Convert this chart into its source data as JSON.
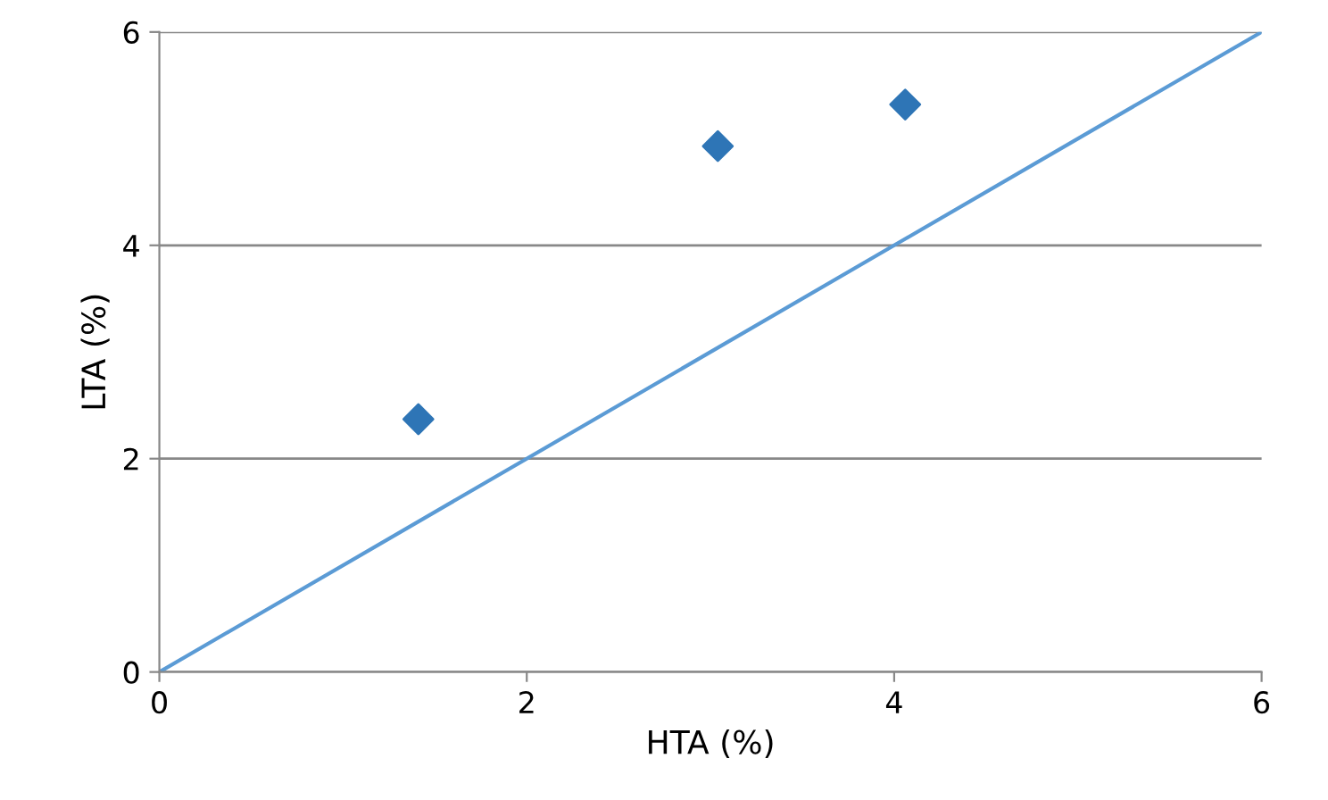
{
  "chart_data": {
    "type": "scatter",
    "xlabel": "HTA (%)",
    "ylabel": "LTA (%)",
    "xlim": [
      0,
      6
    ],
    "ylim": [
      0,
      6
    ],
    "xticks": [
      0,
      2,
      4,
      6
    ],
    "yticks": [
      0,
      2,
      4,
      6
    ],
    "grid": "y",
    "legend": false,
    "series": [
      {
        "marker": "diamond",
        "color": "#2e75b6",
        "x": [
          1.41,
          3.04,
          4.06
        ],
        "values": [
          2.37,
          4.93,
          5.32
        ]
      },
      {
        "type": "line",
        "marker": "none",
        "color": "#5b9bd5",
        "x": [
          0,
          6
        ],
        "values": [
          0,
          6
        ]
      }
    ]
  }
}
